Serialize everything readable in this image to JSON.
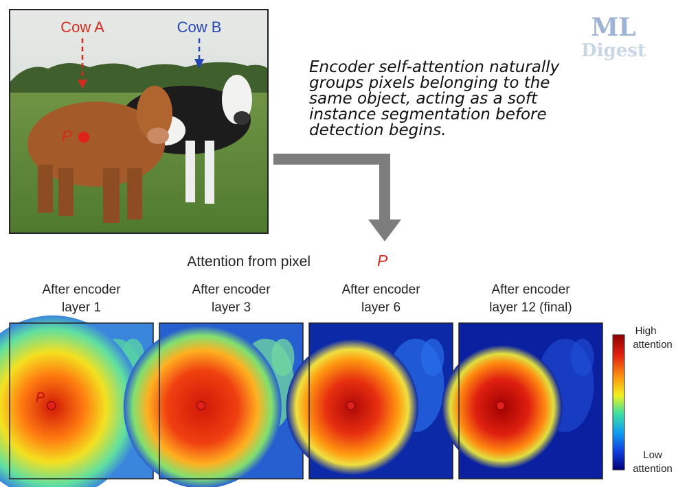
{
  "logo": {
    "line1": "ML",
    "line2": "Digest"
  },
  "photo": {
    "labels": [
      "Cow A",
      "Cow B"
    ],
    "point": "P"
  },
  "caption": [
    "Encoder self-attention naturally",
    "groups pixels belonging to the",
    "same object, acting as a soft",
    "instance segmentation before",
    "detection begins."
  ],
  "attention_title": {
    "text": "Attention from pixel",
    "pixel": "P"
  },
  "panels": [
    {
      "title": [
        "After encoder",
        "layer 1"
      ],
      "point": "P"
    },
    {
      "title": [
        "After encoder",
        "layer 3"
      ]
    },
    {
      "title": [
        "After encoder",
        "layer 6"
      ]
    },
    {
      "title": [
        "After encoder",
        "layer 12 (final)"
      ]
    }
  ],
  "colorbar": {
    "high": [
      "High",
      "attention"
    ],
    "low": [
      "Low",
      "attention"
    ]
  }
}
